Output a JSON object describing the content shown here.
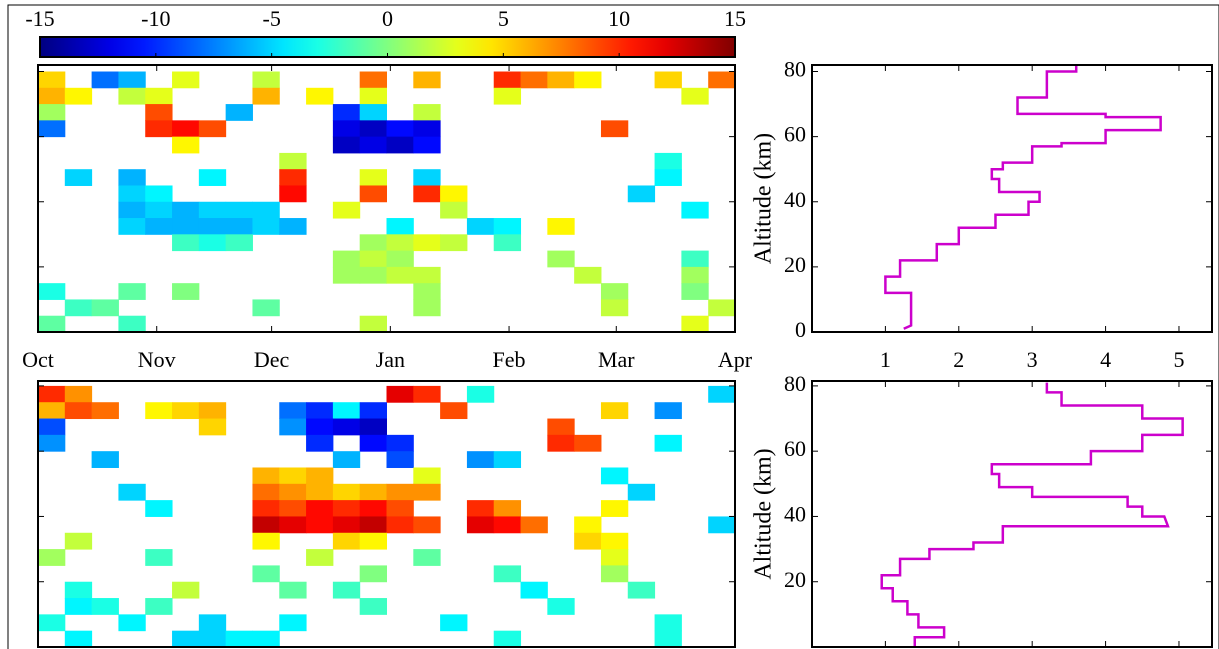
{
  "chart_data": [
    {
      "type": "heatmap",
      "colormap": "jet",
      "colorbar": {
        "clim": [
          -15,
          15
        ],
        "ticks": [
          -15,
          -10,
          -5,
          0,
          5,
          10,
          15
        ]
      },
      "xlim": [
        0,
        182
      ],
      "xticks": [
        {
          "value": 0,
          "label": "Oct"
        },
        {
          "value": 31,
          "label": "Nov"
        },
        {
          "value": 61,
          "label": "Dec"
        },
        {
          "value": 92,
          "label": "Jan"
        },
        {
          "value": 123,
          "label": "Feb"
        },
        {
          "value": 151,
          "label": "Mar"
        },
        {
          "value": 182,
          "label": "Apr"
        }
      ],
      "ylim": [
        0,
        82
      ],
      "yticks": [
        0,
        20,
        40,
        60,
        80
      ],
      "x": [
        3.5,
        10.5,
        17.5,
        24.5,
        31.5,
        38.5,
        45.5,
        52.5,
        59.5,
        66.5,
        73.5,
        80.5,
        87.5,
        94.5,
        101.5,
        108.5,
        115.5,
        122.5,
        129.5,
        136.5,
        143.5,
        150.5,
        157.5,
        164.5,
        171.5,
        178.5
      ],
      "y": [
        77.5,
        72.5,
        67.5,
        62.5,
        57.5,
        52.5,
        47.5,
        42.5,
        37.5,
        32.5,
        27.5,
        22.5,
        17.5,
        12.5,
        7.5,
        2.5
      ],
      "z": [
        [
          5,
          null,
          -8,
          -6,
          null,
          3,
          null,
          null,
          2,
          null,
          null,
          null,
          8,
          null,
          6,
          null,
          null,
          10,
          8,
          6,
          4,
          null,
          null,
          5,
          null,
          8
        ],
        [
          6,
          4,
          null,
          2,
          3,
          null,
          null,
          null,
          6,
          null,
          4,
          null,
          3,
          null,
          null,
          null,
          null,
          3,
          null,
          null,
          null,
          null,
          null,
          null,
          3,
          null
        ],
        [
          1,
          null,
          null,
          null,
          9,
          null,
          null,
          -6,
          null,
          null,
          null,
          -10,
          -5,
          null,
          2,
          null,
          null,
          null,
          null,
          null,
          null,
          null,
          null,
          null,
          null,
          null
        ],
        [
          -8,
          null,
          null,
          null,
          10,
          11,
          9,
          null,
          null,
          null,
          null,
          -12,
          -13,
          -11,
          -12,
          null,
          null,
          null,
          null,
          null,
          null,
          9,
          null,
          null,
          null,
          null
        ],
        [
          null,
          null,
          null,
          null,
          null,
          4,
          null,
          null,
          null,
          null,
          null,
          -13,
          -12,
          -13,
          -11,
          null,
          null,
          null,
          null,
          null,
          null,
          null,
          null,
          null,
          null,
          null
        ],
        [
          null,
          null,
          null,
          null,
          null,
          null,
          null,
          null,
          null,
          2,
          null,
          null,
          null,
          null,
          null,
          null,
          null,
          null,
          null,
          null,
          null,
          null,
          null,
          -3,
          null,
          null
        ],
        [
          null,
          -5,
          null,
          -6,
          null,
          null,
          -4,
          null,
          null,
          10,
          null,
          null,
          3,
          null,
          -5,
          null,
          null,
          null,
          null,
          null,
          null,
          null,
          null,
          -4,
          null,
          null
        ],
        [
          null,
          null,
          null,
          -5,
          -4,
          null,
          null,
          null,
          null,
          11,
          null,
          null,
          9,
          null,
          10,
          4,
          null,
          null,
          null,
          null,
          null,
          null,
          -5,
          null,
          null,
          null
        ],
        [
          null,
          null,
          null,
          -6,
          -5,
          -6,
          -5,
          -5,
          -5,
          null,
          null,
          3,
          null,
          null,
          null,
          2,
          null,
          null,
          null,
          null,
          null,
          null,
          null,
          null,
          -4,
          null
        ],
        [
          null,
          null,
          null,
          -5,
          -6,
          -6,
          -6,
          -6,
          -5,
          -6,
          null,
          null,
          null,
          -4,
          null,
          null,
          -5,
          -4,
          null,
          4,
          null,
          null,
          null,
          null,
          null,
          null
        ],
        [
          null,
          null,
          null,
          null,
          null,
          -2,
          -3,
          -2,
          null,
          null,
          null,
          null,
          1,
          2,
          3,
          2,
          null,
          -2,
          null,
          null,
          null,
          null,
          null,
          null,
          null,
          null
        ],
        [
          null,
          null,
          null,
          null,
          null,
          null,
          null,
          null,
          null,
          null,
          null,
          1,
          2,
          1,
          null,
          null,
          null,
          null,
          null,
          1,
          null,
          null,
          null,
          null,
          -2,
          null
        ],
        [
          null,
          null,
          null,
          null,
          null,
          null,
          null,
          null,
          null,
          null,
          null,
          1,
          1,
          2,
          2,
          null,
          null,
          null,
          null,
          null,
          2,
          null,
          null,
          null,
          1,
          null
        ],
        [
          -3,
          null,
          null,
          -1,
          null,
          0,
          null,
          null,
          null,
          null,
          null,
          null,
          null,
          null,
          1,
          null,
          null,
          null,
          null,
          null,
          null,
          1,
          null,
          null,
          0,
          null
        ],
        [
          null,
          -2,
          -1,
          null,
          null,
          null,
          null,
          null,
          -1,
          null,
          null,
          null,
          null,
          null,
          1,
          null,
          null,
          null,
          null,
          null,
          null,
          2,
          null,
          null,
          null,
          2
        ],
        [
          -1,
          null,
          null,
          -2,
          null,
          null,
          null,
          null,
          null,
          null,
          null,
          null,
          2,
          null,
          null,
          null,
          null,
          null,
          null,
          null,
          null,
          null,
          null,
          null,
          3,
          null
        ]
      ]
    },
    {
      "type": "line",
      "xlim": [
        0,
        5.45
      ],
      "xticks": [
        1,
        2,
        3,
        4,
        5
      ],
      "ylim": [
        0,
        82
      ],
      "yticks": [
        0,
        20,
        40,
        60,
        80
      ],
      "ylabel": "Altitude (km)",
      "series": [
        {
          "color": "#cc00cc",
          "values": [
            1.25,
            1.35,
            1.35,
            1.0,
            1.0,
            1.2,
            1.2,
            1.7,
            1.7,
            2.0,
            2.0,
            2.5,
            2.5,
            2.95,
            2.95,
            3.1,
            3.1,
            2.55,
            2.55,
            2.45,
            2.45,
            2.6,
            2.6,
            3.0,
            3.0,
            3.4,
            3.4,
            4.0,
            4.0,
            4.75,
            4.75,
            4.0,
            4.0,
            2.8,
            2.8,
            3.2,
            3.2,
            3.6,
            3.6
          ],
          "y": [
            1,
            2,
            12,
            12,
            17,
            17,
            22,
            22,
            27,
            27,
            32,
            32,
            36,
            36,
            40,
            40,
            43,
            43,
            47,
            47,
            50,
            50,
            52,
            52,
            57,
            57,
            58,
            58,
            62,
            62,
            66,
            66,
            67,
            67,
            72,
            72,
            80,
            80,
            82
          ]
        }
      ]
    },
    {
      "type": "heatmap",
      "colormap": "jet",
      "clim": [
        -15,
        15
      ],
      "xlim": [
        0,
        182
      ],
      "ylim": [
        0,
        81.5
      ],
      "yticks": [
        20,
        40,
        60,
        80
      ],
      "x": [
        3.5,
        10.5,
        17.5,
        24.5,
        31.5,
        38.5,
        45.5,
        52.5,
        59.5,
        66.5,
        73.5,
        80.5,
        87.5,
        94.5,
        101.5,
        108.5,
        115.5,
        122.5,
        129.5,
        136.5,
        143.5,
        150.5,
        157.5,
        164.5,
        171.5,
        178.5
      ],
      "y": [
        77.5,
        72.5,
        67.5,
        62.5,
        57.5,
        52.5,
        47.5,
        42.5,
        37.5,
        32.5,
        27.5,
        22.5,
        17.5,
        12.5,
        7.5,
        2.5
      ],
      "z": [
        [
          10,
          7,
          null,
          null,
          null,
          null,
          null,
          null,
          null,
          null,
          null,
          null,
          null,
          12,
          10,
          null,
          -3,
          null,
          null,
          null,
          null,
          null,
          null,
          null,
          null,
          -5
        ],
        [
          6,
          9,
          8,
          null,
          4,
          5,
          6,
          null,
          null,
          -8,
          -10,
          -4,
          -10,
          null,
          null,
          9,
          null,
          null,
          null,
          null,
          null,
          5,
          null,
          -7,
          null,
          null
        ],
        [
          -9,
          null,
          null,
          null,
          null,
          null,
          5,
          null,
          null,
          -7,
          -11,
          -12,
          -13,
          null,
          null,
          null,
          null,
          null,
          null,
          9,
          null,
          null,
          null,
          null,
          null,
          null
        ],
        [
          -7,
          null,
          null,
          null,
          null,
          null,
          null,
          null,
          null,
          null,
          -10,
          null,
          -11,
          -10,
          null,
          null,
          null,
          null,
          null,
          10,
          9,
          null,
          null,
          -4,
          null,
          null
        ],
        [
          null,
          null,
          -6,
          null,
          null,
          null,
          null,
          null,
          null,
          null,
          null,
          -6,
          null,
          -9,
          null,
          null,
          -7,
          -5,
          null,
          null,
          null,
          null,
          null,
          null,
          null,
          null
        ],
        [
          null,
          null,
          null,
          null,
          null,
          null,
          null,
          null,
          6,
          5,
          6,
          null,
          null,
          null,
          3,
          null,
          null,
          null,
          null,
          null,
          null,
          -4,
          null,
          null,
          null,
          null
        ],
        [
          null,
          null,
          null,
          -5,
          null,
          null,
          null,
          null,
          8,
          7,
          6,
          5,
          6,
          7,
          7,
          null,
          null,
          null,
          null,
          null,
          null,
          null,
          -5,
          null,
          null,
          null
        ],
        [
          null,
          null,
          null,
          null,
          -4,
          null,
          null,
          null,
          10,
          9,
          11,
          10,
          11,
          9,
          null,
          null,
          10,
          7,
          null,
          null,
          null,
          4,
          null,
          null,
          null,
          null
        ],
        [
          null,
          null,
          null,
          null,
          null,
          null,
          null,
          null,
          13,
          12,
          11,
          12,
          13,
          10,
          9,
          null,
          12,
          11,
          8,
          null,
          4,
          null,
          null,
          null,
          null,
          -5
        ],
        [
          null,
          2,
          null,
          null,
          null,
          null,
          null,
          null,
          4,
          null,
          null,
          5,
          4,
          null,
          null,
          null,
          null,
          null,
          null,
          null,
          5,
          4,
          null,
          null,
          null,
          null
        ],
        [
          1,
          null,
          null,
          null,
          -2,
          null,
          null,
          null,
          null,
          null,
          2,
          null,
          null,
          null,
          -1,
          null,
          null,
          null,
          null,
          null,
          null,
          3,
          null,
          null,
          null,
          null
        ],
        [
          null,
          null,
          null,
          null,
          null,
          null,
          null,
          null,
          -1,
          null,
          null,
          null,
          0,
          null,
          null,
          null,
          null,
          -2,
          null,
          null,
          null,
          1,
          null,
          null,
          null,
          null
        ],
        [
          null,
          -3,
          null,
          null,
          null,
          2,
          null,
          null,
          null,
          -1,
          null,
          -2,
          null,
          null,
          null,
          null,
          null,
          null,
          -4,
          null,
          null,
          null,
          -2,
          null,
          null,
          null
        ],
        [
          null,
          -4,
          -3,
          null,
          -2,
          null,
          null,
          null,
          null,
          null,
          null,
          null,
          -2,
          null,
          null,
          null,
          null,
          null,
          null,
          -3,
          null,
          null,
          null,
          null,
          null,
          null
        ],
        [
          -3,
          null,
          null,
          -4,
          null,
          null,
          -5,
          null,
          null,
          -4,
          null,
          null,
          null,
          null,
          null,
          -4,
          null,
          null,
          null,
          null,
          null,
          null,
          null,
          -3,
          null,
          null
        ],
        [
          null,
          -4,
          null,
          null,
          null,
          -5,
          -5,
          -4,
          -4,
          null,
          null,
          null,
          null,
          null,
          null,
          null,
          null,
          -3,
          null,
          null,
          null,
          null,
          null,
          -3,
          null,
          null
        ]
      ]
    },
    {
      "type": "line",
      "xlim": [
        0,
        5.45
      ],
      "xticks": [
        1,
        2,
        3,
        4,
        5
      ],
      "ylim": [
        0,
        81.5
      ],
      "yticks": [
        20,
        40,
        60,
        80
      ],
      "ylabel": "Altitude (km)",
      "series": [
        {
          "color": "#cc00cc",
          "values": [
            1.4,
            1.4,
            1.8,
            1.8,
            1.45,
            1.45,
            1.3,
            1.3,
            1.1,
            1.1,
            0.95,
            0.95,
            1.2,
            1.2,
            1.6,
            1.6,
            2.2,
            2.2,
            2.6,
            2.6,
            4.85,
            4.8,
            4.5,
            4.5,
            4.3,
            4.3,
            3.0,
            3.0,
            2.55,
            2.55,
            2.45,
            2.45,
            3.8,
            3.8,
            4.5,
            4.5,
            5.05,
            5.05,
            4.5,
            4.5,
            3.4,
            3.4,
            3.2,
            3.2
          ],
          "y": [
            0,
            3,
            3,
            6,
            6,
            10,
            10,
            14,
            14,
            18,
            18,
            22,
            22,
            27,
            27,
            30,
            30,
            32,
            32,
            37,
            37,
            40,
            40,
            43,
            43,
            46,
            46,
            49,
            49,
            53,
            53,
            56,
            56,
            60,
            60,
            65,
            65,
            70,
            70,
            74,
            74,
            78,
            78,
            81
          ]
        }
      ]
    }
  ]
}
